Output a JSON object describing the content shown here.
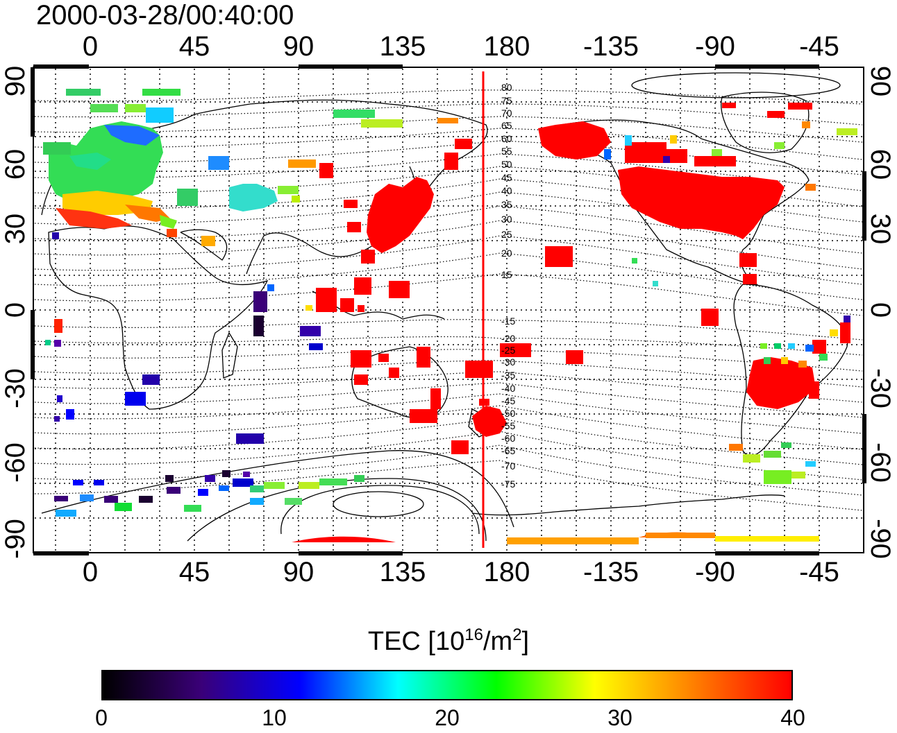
{
  "title": "2000-03-28/00:40:00",
  "map": {
    "lon_ticks_top": [
      "0",
      "45",
      "90",
      "135",
      "180",
      "-135",
      "-90",
      "-45"
    ],
    "lon_ticks_bottom": [
      "0",
      "45",
      "90",
      "135",
      "180",
      "-135",
      "-90",
      "-45"
    ],
    "lat_ticks_left": [
      "90",
      "60",
      "30",
      "0",
      "-30",
      "-60",
      "-90"
    ],
    "lat_ticks_right": [
      "90",
      "60",
      "30",
      "0",
      "-30",
      "-60",
      "-90"
    ],
    "contour_labels": [
      "80",
      "75",
      "70",
      "65",
      "60",
      "55",
      "50",
      "45",
      "40",
      "35",
      "30",
      "25",
      "20",
      "15",
      "-15",
      "-20",
      "-25",
      "-30",
      "-35",
      "-40",
      "-45",
      "-50",
      "-55",
      "-60",
      "-65",
      "-70",
      "-75"
    ],
    "meridian_line_color": "#ff0000",
    "grid": "dotted"
  },
  "colorbar": {
    "title_main": "TEC  [10",
    "title_sup1": "16",
    "title_mid": "/m",
    "title_sup2": "2",
    "title_end": "]",
    "ticks": [
      "0",
      "10",
      "20",
      "30",
      "40"
    ],
    "range": [
      0,
      40
    ],
    "colors": [
      "#000000",
      "#3a0078",
      "#0000ff",
      "#00ffff",
      "#00ff00",
      "#ffff00",
      "#ff8000",
      "#ff0000"
    ]
  }
}
